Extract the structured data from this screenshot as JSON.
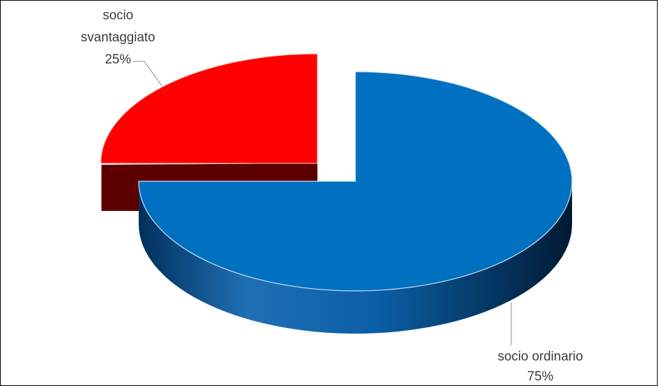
{
  "chart_data": {
    "type": "pie",
    "style": "3d-exploded",
    "slices": [
      {
        "name_line1": "socio ordinario",
        "name_line2": "",
        "label": "socio ordinario",
        "value": 75,
        "value_label": "75%",
        "color": "#0070C0",
        "side_color": "#003a66"
      },
      {
        "name_line1": "socio",
        "name_line2": "svantaggiato",
        "label": "socio svantaggiato",
        "value": 25,
        "value_label": "25%",
        "color": "#FF0000",
        "side_color": "#5c0000"
      }
    ],
    "legend": "none",
    "title": ""
  }
}
